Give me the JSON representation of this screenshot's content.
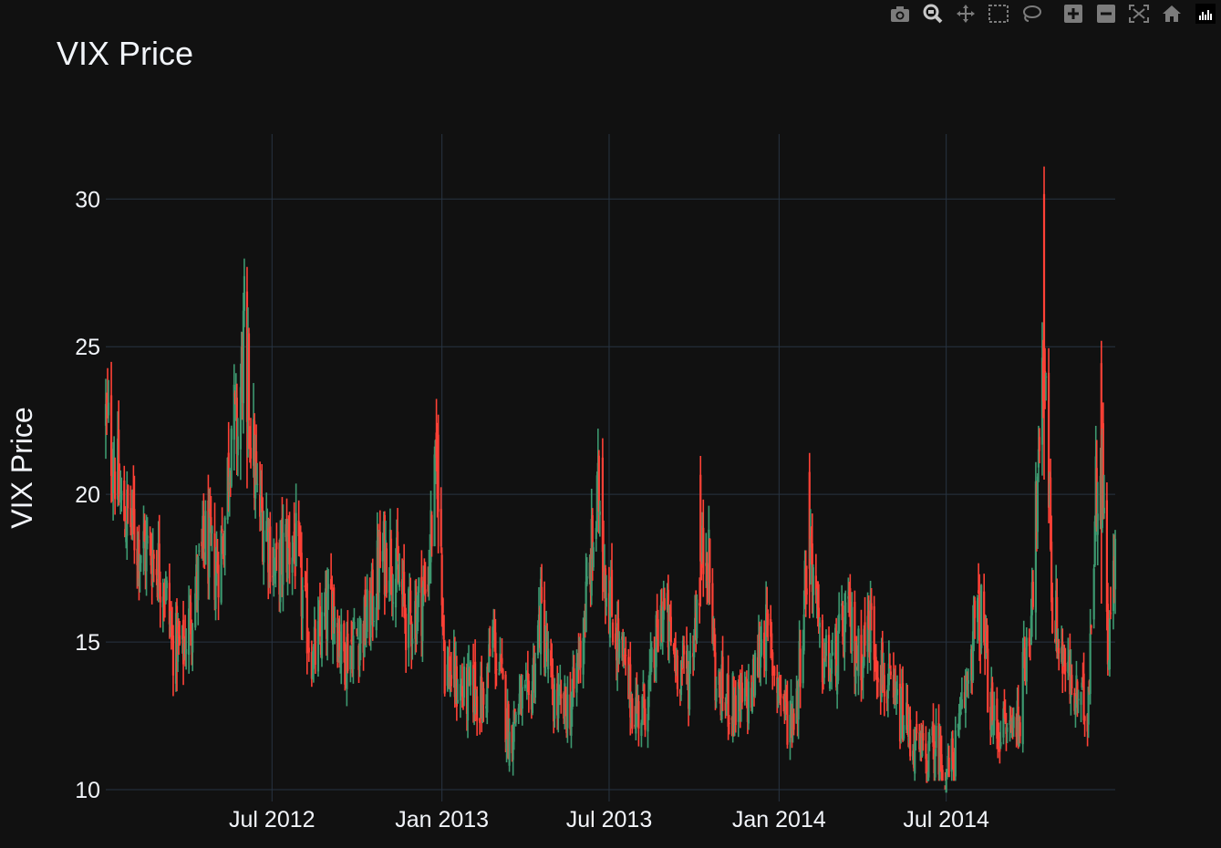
{
  "chart_data": {
    "type": "candlestick",
    "title": "VIX Price",
    "xlabel": "",
    "ylabel": "VIX Price",
    "x_tick_labels": [
      "Jul 2012",
      "Jan 2013",
      "Jul 2013",
      "Jan 2014",
      "Jul 2014"
    ],
    "x_tick_dates": [
      "2012-07-01",
      "2013-01-01",
      "2013-07-01",
      "2014-01-01",
      "2014-07-01"
    ],
    "xlim": [
      "2012-01-03",
      "2014-12-31"
    ],
    "y_tick_labels": [
      "10",
      "15",
      "20",
      "25",
      "30"
    ],
    "y_ticks": [
      10,
      15,
      20,
      25,
      30
    ],
    "ylim": [
      9.6,
      32.2
    ],
    "grid": true,
    "legend": "none",
    "increasing_color": "#3d9970",
    "decreasing_color": "#ff4136",
    "anchors": [
      [
        "2012-01-03",
        22.5
      ],
      [
        "2012-01-12",
        21.2
      ],
      [
        "2012-01-20",
        19.5
      ],
      [
        "2012-01-31",
        19.0
      ],
      [
        "2012-02-10",
        18.2
      ],
      [
        "2012-02-22",
        18.0
      ],
      [
        "2012-03-05",
        17.3
      ],
      [
        "2012-03-15",
        15.0
      ],
      [
        "2012-03-26",
        14.6
      ],
      [
        "2012-04-10",
        16.8
      ],
      [
        "2012-04-20",
        18.4
      ],
      [
        "2012-05-01",
        17.4
      ],
      [
        "2012-05-10",
        18.8
      ],
      [
        "2012-05-18",
        22.5
      ],
      [
        "2012-05-25",
        22.0
      ],
      [
        "2012-06-01",
        25.5
      ],
      [
        "2012-06-08",
        22.4
      ],
      [
        "2012-06-15",
        19.6
      ],
      [
        "2012-06-25",
        19.0
      ],
      [
        "2012-07-05",
        17.2
      ],
      [
        "2012-07-15",
        18.2
      ],
      [
        "2012-07-25",
        18.4
      ],
      [
        "2012-08-05",
        16.0
      ],
      [
        "2012-08-15",
        14.4
      ],
      [
        "2012-08-25",
        15.4
      ],
      [
        "2012-09-05",
        16.5
      ],
      [
        "2012-09-15",
        14.5
      ],
      [
        "2012-09-25",
        15.0
      ],
      [
        "2012-10-05",
        15.3
      ],
      [
        "2012-10-15",
        15.8
      ],
      [
        "2012-10-25",
        17.6
      ],
      [
        "2012-11-05",
        18.2
      ],
      [
        "2012-11-15",
        17.0
      ],
      [
        "2012-11-25",
        15.6
      ],
      [
        "2012-12-05",
        16.2
      ],
      [
        "2012-12-15",
        16.8
      ],
      [
        "2012-12-28",
        21.5
      ],
      [
        "2013-01-04",
        14.2
      ],
      [
        "2013-01-15",
        13.6
      ],
      [
        "2013-01-25",
        13.2
      ],
      [
        "2013-02-05",
        13.4
      ],
      [
        "2013-02-15",
        12.8
      ],
      [
        "2013-02-25",
        15.2
      ],
      [
        "2013-03-05",
        13.8
      ],
      [
        "2013-03-15",
        11.7
      ],
      [
        "2013-03-25",
        13.0
      ],
      [
        "2013-04-05",
        12.8
      ],
      [
        "2013-04-18",
        16.0
      ],
      [
        "2013-04-30",
        13.2
      ],
      [
        "2013-05-10",
        12.6
      ],
      [
        "2013-05-22",
        12.9
      ],
      [
        "2013-06-05",
        16.0
      ],
      [
        "2013-06-20",
        20.0
      ],
      [
        "2013-06-28",
        17.0
      ],
      [
        "2013-07-10",
        15.0
      ],
      [
        "2013-07-25",
        13.0
      ],
      [
        "2013-08-05",
        12.6
      ],
      [
        "2013-08-15",
        13.6
      ],
      [
        "2013-08-28",
        16.2
      ],
      [
        "2013-09-10",
        14.5
      ],
      [
        "2013-09-25",
        13.8
      ],
      [
        "2013-10-08",
        17.5
      ],
      [
        "2013-10-15",
        18.5
      ],
      [
        "2013-10-25",
        13.4
      ],
      [
        "2013-11-08",
        13.0
      ],
      [
        "2013-11-20",
        12.8
      ],
      [
        "2013-12-02",
        13.2
      ],
      [
        "2013-12-15",
        15.5
      ],
      [
        "2013-12-30",
        13.8
      ],
      [
        "2014-01-10",
        12.4
      ],
      [
        "2014-01-20",
        12.9
      ],
      [
        "2014-02-03",
        19.0
      ],
      [
        "2014-02-14",
        14.6
      ],
      [
        "2014-02-28",
        14.0
      ],
      [
        "2014-03-15",
        15.8
      ],
      [
        "2014-03-28",
        14.4
      ],
      [
        "2014-04-10",
        15.6
      ],
      [
        "2014-04-22",
        14.0
      ],
      [
        "2014-05-05",
        12.8
      ],
      [
        "2014-05-15",
        12.5
      ],
      [
        "2014-05-28",
        11.4
      ],
      [
        "2014-06-10",
        11.0
      ],
      [
        "2014-06-20",
        11.5
      ],
      [
        "2014-07-03",
        10.5
      ],
      [
        "2014-07-15",
        11.8
      ],
      [
        "2014-07-31",
        15.5
      ],
      [
        "2014-08-08",
        15.8
      ],
      [
        "2014-08-20",
        12.2
      ],
      [
        "2014-09-05",
        12.0
      ],
      [
        "2014-09-18",
        12.5
      ],
      [
        "2014-09-30",
        16.0
      ],
      [
        "2014-10-10",
        21.0
      ],
      [
        "2014-10-16",
        25.0
      ],
      [
        "2014-10-24",
        16.2
      ],
      [
        "2014-11-05",
        14.3
      ],
      [
        "2014-11-18",
        13.0
      ],
      [
        "2014-12-01",
        12.8
      ],
      [
        "2014-12-10",
        20.0
      ],
      [
        "2014-12-16",
        22.0
      ],
      [
        "2014-12-23",
        15.0
      ],
      [
        "2014-12-31",
        17.5
      ]
    ],
    "highlights": [
      [
        "2012-06-04",
        27.7,
        20.2
      ],
      [
        "2012-12-28",
        22.7,
        18.0
      ],
      [
        "2013-06-24",
        21.9,
        16.4
      ],
      [
        "2013-10-08",
        21.3,
        16.2
      ],
      [
        "2014-02-03",
        21.4,
        15.8
      ],
      [
        "2014-10-15",
        31.1,
        20.5
      ],
      [
        "2014-12-16",
        25.2,
        16.3
      ]
    ]
  },
  "modebar": {
    "buttons": [
      "camera-icon",
      "zoom-icon",
      "pan-icon",
      "box-select-icon",
      "lasso-select-icon",
      "zoom-in-icon",
      "zoom-out-icon",
      "autoscale-icon",
      "reset-axes-icon"
    ],
    "logo": "plotly-logo"
  }
}
